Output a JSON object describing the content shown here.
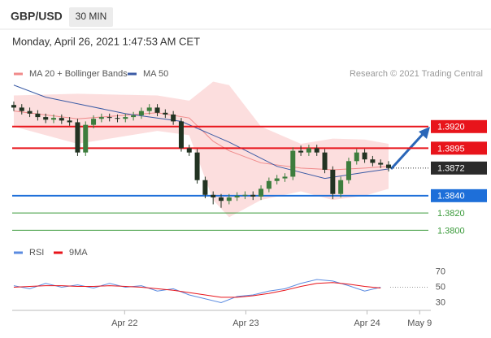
{
  "header": {
    "symbol": "GBP/USD",
    "timeframe": "30 MIN",
    "timestamp": "Monday, April 26, 2021 1:47:53 AM CET"
  },
  "chart_data": [
    {
      "type": "candlestick",
      "credit": "Research © 2021 Trading Central",
      "xlim": [
        -0.2,
        52.3
      ],
      "ylim": [
        1.379,
        1.398
      ],
      "up_color": "#3d7d3d",
      "down_color": "#223322",
      "open": [
        1.3945,
        1.3942,
        1.3938,
        1.3935,
        1.3931,
        1.3928,
        1.393,
        1.3927,
        1.3925,
        1.389,
        1.3922,
        1.3929,
        1.3931,
        1.393,
        1.3929,
        1.3931,
        1.3933,
        1.3938,
        1.3942,
        1.3936,
        1.3934,
        1.3926,
        1.3895,
        1.389,
        1.3858,
        1.3841,
        1.3838,
        1.3834,
        1.3838,
        1.384,
        1.3841,
        1.3839,
        1.3848,
        1.3857,
        1.386,
        1.3862,
        1.3892,
        1.389,
        1.3895,
        1.389,
        1.387,
        1.3842,
        1.3858,
        1.388,
        1.389,
        1.3882,
        1.3878,
        1.3876
      ],
      "high": [
        1.3949,
        1.3946,
        1.3942,
        1.3939,
        1.3935,
        1.3934,
        1.3934,
        1.3931,
        1.3929,
        1.3926,
        1.3933,
        1.3935,
        1.3935,
        1.3934,
        1.3935,
        1.3937,
        1.3942,
        1.3946,
        1.3946,
        1.394,
        1.3938,
        1.393,
        1.3899,
        1.3894,
        1.3862,
        1.3845,
        1.3842,
        1.3842,
        1.3844,
        1.3845,
        1.3845,
        1.3852,
        1.3861,
        1.3864,
        1.3866,
        1.3896,
        1.3898,
        1.3899,
        1.3899,
        1.3894,
        1.3874,
        1.3862,
        1.3884,
        1.3894,
        1.3894,
        1.3886,
        1.3882,
        1.388
      ],
      "low": [
        1.3938,
        1.3934,
        1.3931,
        1.3927,
        1.3924,
        1.3924,
        1.3923,
        1.3921,
        1.3886,
        1.3886,
        1.3918,
        1.3925,
        1.3926,
        1.3925,
        1.3925,
        1.3927,
        1.3929,
        1.3934,
        1.3932,
        1.393,
        1.3922,
        1.3891,
        1.3886,
        1.3854,
        1.3837,
        1.383,
        1.3826,
        1.383,
        1.3834,
        1.3836,
        1.3835,
        1.3835,
        1.3844,
        1.3853,
        1.3856,
        1.3858,
        1.3886,
        1.3886,
        1.3886,
        1.3866,
        1.3836,
        1.3838,
        1.3854,
        1.3876,
        1.3878,
        1.3874,
        1.3872,
        1.3868
      ],
      "close": [
        1.3942,
        1.3938,
        1.3935,
        1.3931,
        1.3928,
        1.393,
        1.3927,
        1.3925,
        1.389,
        1.3922,
        1.3929,
        1.3931,
        1.393,
        1.3929,
        1.3931,
        1.3933,
        1.3938,
        1.3942,
        1.3936,
        1.3934,
        1.3926,
        1.3895,
        1.389,
        1.3858,
        1.3841,
        1.3838,
        1.3834,
        1.3838,
        1.384,
        1.3841,
        1.3839,
        1.3848,
        1.3857,
        1.386,
        1.3862,
        1.3892,
        1.389,
        1.3895,
        1.389,
        1.387,
        1.3842,
        1.3858,
        1.388,
        1.389,
        1.3882,
        1.3878,
        1.3876,
        1.3872
      ],
      "series": [
        {
          "name": "MA 20 + Bollinger Bands",
          "color": "#f08a8a",
          "band_color": "#fbd3d3",
          "x": [
            0,
            8,
            18,
            22,
            25,
            27,
            31,
            36,
            40,
            44,
            47
          ],
          "values": [
            1.3938,
            1.3929,
            1.3936,
            1.393,
            1.3903,
            1.3892,
            1.3878,
            1.3872,
            1.387,
            1.3872,
            1.3874
          ],
          "upper": [
            1.3956,
            1.3958,
            1.3956,
            1.395,
            1.3972,
            1.3968,
            1.392,
            1.39,
            1.3906,
            1.3905,
            1.39
          ],
          "lower": [
            1.392,
            1.39,
            1.3915,
            1.391,
            1.3835,
            1.3815,
            1.3835,
            1.3845,
            1.3835,
            1.384,
            1.3848
          ]
        },
        {
          "name": "MA 50",
          "color": "#3b5ba5",
          "x": [
            0,
            4,
            14,
            21,
            27,
            33,
            39,
            44,
            47
          ],
          "values": [
            1.3968,
            1.3954,
            1.3935,
            1.3926,
            1.3902,
            1.3874,
            1.386,
            1.3867,
            1.3871
          ]
        }
      ],
      "levels": [
        {
          "value": 1.392,
          "label": "1.3920",
          "color": "#e8141b",
          "box": true
        },
        {
          "value": 1.3895,
          "label": "1.3895",
          "color": "#e8141b",
          "box": true
        },
        {
          "value": 1.3872,
          "label": "1.3872",
          "color": "#2b2b2b",
          "box": true,
          "dotted": true
        },
        {
          "value": 1.384,
          "label": "1.3840",
          "color": "#1e6fd9",
          "box": true
        },
        {
          "value": 1.382,
          "label": "1.3820",
          "color": "#3a9a3a",
          "box": false
        },
        {
          "value": 1.38,
          "label": "1.3800",
          "color": "#3a9a3a",
          "box": false
        }
      ]
    },
    {
      "type": "line",
      "xlim": [
        -0.2,
        52.3
      ],
      "ylim": [
        20,
        80
      ],
      "yticks": [
        30,
        50,
        70
      ],
      "xticks": [
        {
          "value": 13.9,
          "label": "Apr 22"
        },
        {
          "value": 29.1,
          "label": "Apr 23"
        },
        {
          "value": 44.3,
          "label": "Apr 24"
        },
        {
          "value": 50.9,
          "label": "May 9"
        }
      ],
      "series": [
        {
          "name": "RSI",
          "color": "#5b8be0",
          "x": [
            0,
            2,
            4,
            6,
            8,
            10,
            12,
            14,
            16,
            18,
            20,
            22,
            24,
            26,
            28,
            30,
            32,
            34,
            36,
            38,
            40,
            42,
            44,
            46
          ],
          "values": [
            52,
            48,
            55,
            50,
            53,
            49,
            55,
            50,
            52,
            45,
            48,
            40,
            35,
            30,
            38,
            40,
            45,
            48,
            55,
            60,
            58,
            52,
            45,
            50
          ]
        },
        {
          "name": "9MA",
          "color": "#e8141b",
          "x": [
            0,
            2,
            4,
            6,
            8,
            10,
            12,
            14,
            16,
            18,
            20,
            22,
            24,
            26,
            28,
            30,
            32,
            34,
            36,
            38,
            40,
            42,
            44,
            46
          ],
          "values": [
            50,
            51,
            52,
            52,
            51,
            51,
            52,
            51,
            50,
            48,
            46,
            43,
            40,
            37,
            37,
            39,
            42,
            46,
            51,
            55,
            56,
            54,
            51,
            49
          ]
        }
      ]
    }
  ]
}
